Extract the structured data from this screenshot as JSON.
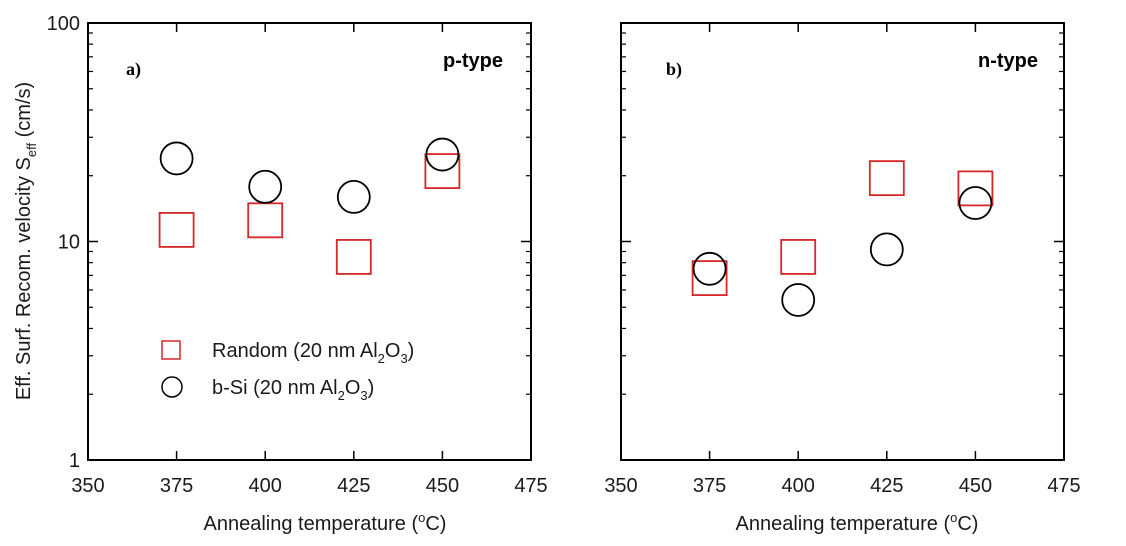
{
  "chart_data": [
    {
      "type": "scatter",
      "panel_label": "a)",
      "annotation": "p-type",
      "xlabel_prefix": "Annealing temperature  (",
      "xlabel_sup": "o",
      "xlabel_suffix": "C)",
      "ylabel_main": "Eff. Surf. Recom. velocity  S",
      "ylabel_sub": "eff",
      "ylabel_unit": " (cm/s)",
      "xlim": [
        350,
        475
      ],
      "ylim": [
        1,
        100
      ],
      "yscale": "log",
      "x_ticks": [
        "350",
        "375",
        "400",
        "425",
        "450",
        "475"
      ],
      "y_ticks": [
        "1",
        "10",
        "100"
      ],
      "legend_position": "lower-left",
      "series": [
        {
          "name": "Random (20 nm Al2O3)",
          "legend_prefix": "Random (20 nm Al",
          "legend_sub1": "2",
          "legend_mid": "O",
          "legend_sub2": "3",
          "legend_suffix": ")",
          "marker": "square",
          "color": "#d62728",
          "x": [
            375,
            400,
            425,
            450
          ],
          "y": [
            11.3,
            12.5,
            8.5,
            21
          ]
        },
        {
          "name": "b-Si (20 nm Al2O3)",
          "legend_prefix": "b-Si  (20 nm Al",
          "legend_sub1": "2",
          "legend_mid": "O",
          "legend_sub2": "3",
          "legend_suffix": ")",
          "marker": "circle",
          "color": "#000000",
          "x": [
            375,
            400,
            425,
            450
          ],
          "y": [
            24,
            17.8,
            16,
            25
          ]
        }
      ]
    },
    {
      "type": "scatter",
      "panel_label": "b)",
      "annotation": "n-type",
      "xlabel_prefix": "Annealing temperature  (",
      "xlabel_sup": "o",
      "xlabel_suffix": "C)",
      "xlim": [
        350,
        475
      ],
      "ylim": [
        1,
        100
      ],
      "yscale": "log",
      "x_ticks": [
        "350",
        "375",
        "400",
        "425",
        "450",
        "475"
      ],
      "series": [
        {
          "marker": "square",
          "color": "#d62728",
          "x": [
            375,
            400,
            425,
            450
          ],
          "y": [
            6.8,
            8.5,
            19.5,
            17.5
          ]
        },
        {
          "marker": "circle",
          "color": "#000000",
          "x": [
            375,
            400,
            425,
            450
          ],
          "y": [
            7.5,
            5.4,
            9.2,
            15
          ]
        }
      ]
    }
  ]
}
